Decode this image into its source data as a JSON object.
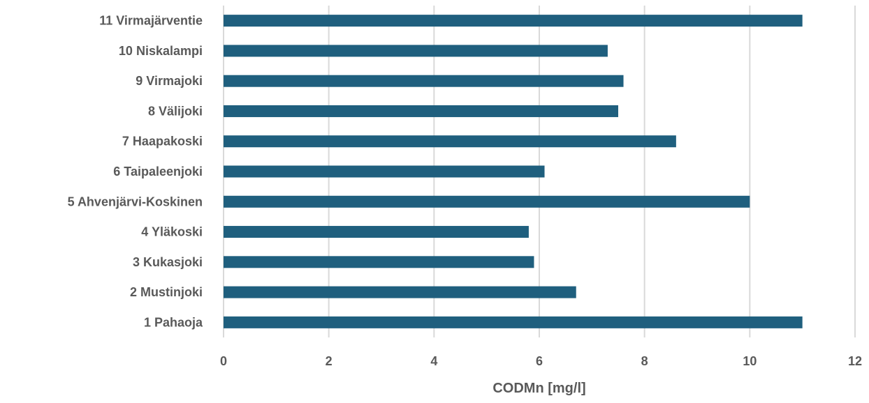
{
  "chart_data": {
    "type": "bar",
    "orientation": "horizontal",
    "title": "",
    "xlabel": "CODMn [mg/l]",
    "ylabel": "",
    "xlim": [
      0,
      12
    ],
    "x_ticks": [
      "0",
      "2",
      "4",
      "6",
      "8",
      "10",
      "12"
    ],
    "grid": "vertical",
    "legend": "none",
    "bar_color": "#1F5F7E",
    "grid_color": "#D9D9D9",
    "text_color": "#595959",
    "categories": [
      "11 Virmajärventie",
      "10 Niskalampi",
      "9 Virmajoki",
      "8 Välijoki",
      "7 Haapakoski",
      "6 Taipaleenjoki",
      "5 Ahvenjärvi-Koskinen",
      "4 Yläkoski",
      "3 Kukasjoki",
      "2 Mustinjoki",
      "1 Pahaoja"
    ],
    "values": [
      11.0,
      7.3,
      7.6,
      7.5,
      8.6,
      6.1,
      10.0,
      5.8,
      5.9,
      6.7,
      11.0
    ]
  }
}
